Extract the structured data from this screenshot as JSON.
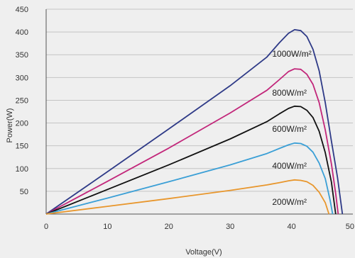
{
  "chart_data": {
    "type": "line",
    "title": "",
    "xlabel": "Voltage(V)",
    "ylabel": "Power(W)",
    "xlim": [
      0,
      50
    ],
    "ylim": [
      0,
      450
    ],
    "x_ticks": [
      "0",
      "10",
      "20",
      "30",
      "40",
      "50"
    ],
    "y_ticks": [
      "50",
      "100",
      "150",
      "200",
      "250",
      "300",
      "350",
      "400",
      "450"
    ],
    "grid": "horizontal",
    "series": [
      {
        "name": "1000W/m²",
        "color": "#2e3a87",
        "points": [
          [
            0,
            0
          ],
          [
            10,
            93
          ],
          [
            20,
            187
          ],
          [
            30,
            282
          ],
          [
            36,
            345
          ],
          [
            38,
            376
          ],
          [
            39.5,
            397
          ],
          [
            40.5,
            405
          ],
          [
            41.5,
            403
          ],
          [
            42.5,
            390
          ],
          [
            43.5,
            362
          ],
          [
            44.5,
            315
          ],
          [
            45.5,
            245
          ],
          [
            46.5,
            160
          ],
          [
            47.5,
            80
          ],
          [
            48.3,
            0
          ]
        ]
      },
      {
        "name": "800W/m²",
        "color": "#c2267a",
        "points": [
          [
            0,
            0
          ],
          [
            10,
            72
          ],
          [
            20,
            145
          ],
          [
            30,
            222
          ],
          [
            36,
            272
          ],
          [
            38,
            295
          ],
          [
            39.5,
            313
          ],
          [
            40.5,
            319
          ],
          [
            41.5,
            318
          ],
          [
            42.5,
            307
          ],
          [
            43.5,
            285
          ],
          [
            44.5,
            245
          ],
          [
            45.5,
            185
          ],
          [
            46.5,
            110
          ],
          [
            47.2,
            45
          ],
          [
            47.6,
            0
          ]
        ]
      },
      {
        "name": "600W/m²",
        "color": "#111111",
        "points": [
          [
            0,
            0
          ],
          [
            10,
            54
          ],
          [
            20,
            108
          ],
          [
            30,
            165
          ],
          [
            36,
            203
          ],
          [
            38,
            220
          ],
          [
            39.5,
            232
          ],
          [
            40.5,
            237
          ],
          [
            41.5,
            236
          ],
          [
            42.5,
            228
          ],
          [
            43.5,
            212
          ],
          [
            44.5,
            182
          ],
          [
            45.5,
            135
          ],
          [
            46.5,
            70
          ],
          [
            47.2,
            0
          ]
        ]
      },
      {
        "name": "400W/m²",
        "color": "#3a9fd6",
        "points": [
          [
            0,
            0
          ],
          [
            10,
            35
          ],
          [
            20,
            71
          ],
          [
            30,
            108
          ],
          [
            36,
            133
          ],
          [
            38,
            144
          ],
          [
            39.5,
            152
          ],
          [
            40.5,
            156
          ],
          [
            41.5,
            155
          ],
          [
            42.5,
            149
          ],
          [
            43.5,
            136
          ],
          [
            44.5,
            112
          ],
          [
            45.5,
            78
          ],
          [
            46.3,
            30
          ],
          [
            46.7,
            0
          ]
        ]
      },
      {
        "name": "200W/m²",
        "color": "#e8962c",
        "points": [
          [
            0,
            0
          ],
          [
            10,
            17
          ],
          [
            20,
            34
          ],
          [
            30,
            52
          ],
          [
            36,
            64
          ],
          [
            38,
            69
          ],
          [
            39.5,
            73
          ],
          [
            40.5,
            75
          ],
          [
            41.5,
            74
          ],
          [
            42.5,
            71
          ],
          [
            43.5,
            63
          ],
          [
            44.5,
            48
          ],
          [
            45.5,
            25
          ],
          [
            46.1,
            0
          ]
        ]
      }
    ]
  }
}
